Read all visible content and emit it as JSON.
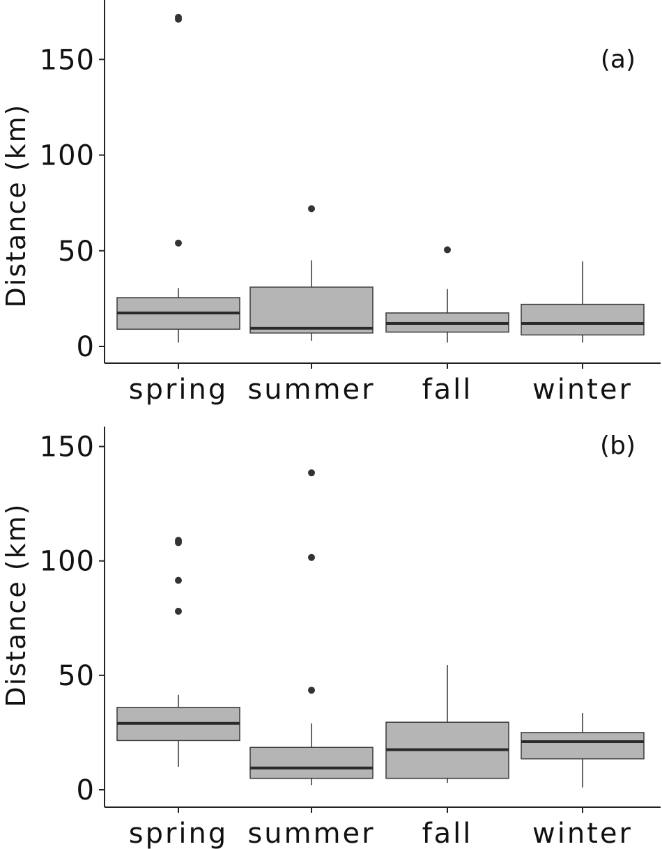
{
  "chart_data": [
    {
      "type": "boxplot",
      "panel_label": "(a)",
      "ylabel": "Distance (km)",
      "xlabel": "",
      "categories": [
        "spring",
        "summer",
        "fall",
        "winter"
      ],
      "yticks": [
        0,
        50,
        100,
        150
      ],
      "ylim": [
        -8,
        180
      ],
      "grid": false,
      "boxes": [
        {
          "category": "spring",
          "whisker_low": 2,
          "q1": 9,
          "median": 17.5,
          "q3": 25.5,
          "whisker_high": 30.5,
          "outliers": [
            54,
            171,
            172
          ]
        },
        {
          "category": "summer",
          "whisker_low": 3,
          "q1": 7,
          "median": 9.5,
          "q3": 31,
          "whisker_high": 45,
          "outliers": [
            72
          ]
        },
        {
          "category": "fall",
          "whisker_low": 2,
          "q1": 7.5,
          "median": 12,
          "q3": 17.5,
          "whisker_high": 30,
          "outliers": [
            50.5
          ]
        },
        {
          "category": "winter",
          "whisker_low": 2,
          "q1": 6,
          "median": 12,
          "q3": 22,
          "whisker_high": 44.5,
          "outliers": []
        }
      ]
    },
    {
      "type": "boxplot",
      "panel_label": "(b)",
      "ylabel": "Distance (km)",
      "xlabel": "",
      "categories": [
        "spring",
        "summer",
        "fall",
        "winter"
      ],
      "yticks": [
        0,
        50,
        100,
        150
      ],
      "ylim": [
        -8,
        158
      ],
      "grid": false,
      "boxes": [
        {
          "category": "spring",
          "whisker_low": 10,
          "q1": 21.5,
          "median": 29,
          "q3": 36,
          "whisker_high": 41.5,
          "outliers": [
            78,
            91.5,
            108,
            109
          ]
        },
        {
          "category": "summer",
          "whisker_low": 2,
          "q1": 5,
          "median": 9.5,
          "q3": 18.5,
          "whisker_high": 29,
          "outliers": [
            43.5,
            101.5,
            138.5
          ]
        },
        {
          "category": "fall",
          "whisker_low": 3,
          "q1": 5,
          "median": 17.5,
          "q3": 29.5,
          "whisker_high": 54.5,
          "outliers": []
        },
        {
          "category": "winter",
          "whisker_low": 1,
          "q1": 13.5,
          "median": 21,
          "q3": 25,
          "whisker_high": 33.5,
          "outliers": []
        }
      ]
    }
  ]
}
